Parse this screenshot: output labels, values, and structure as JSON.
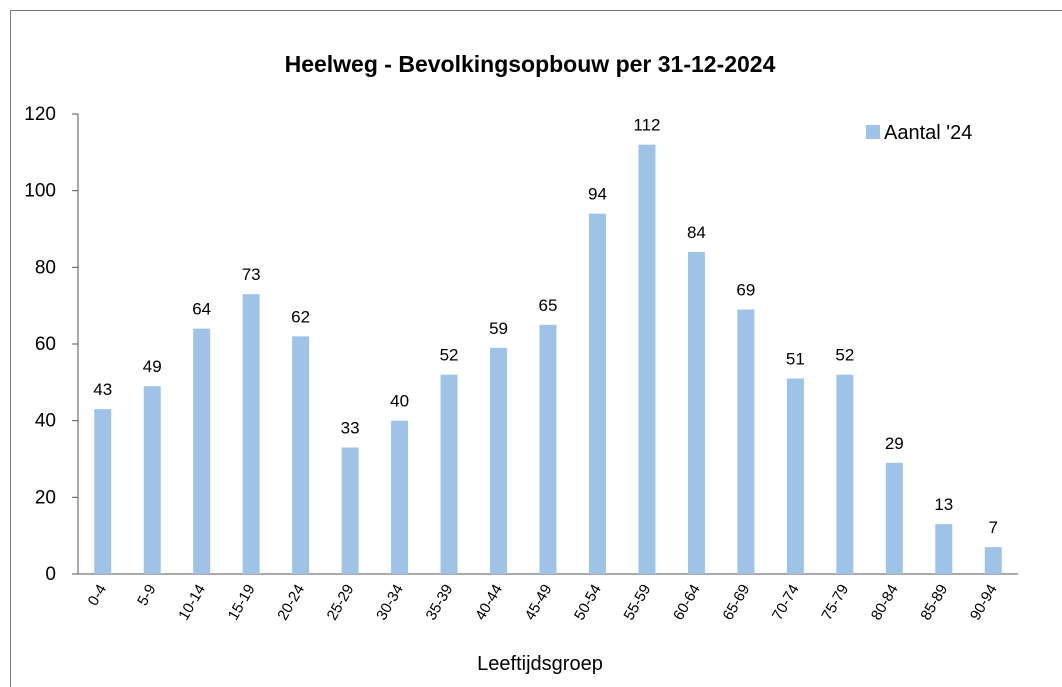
{
  "chart_data": {
    "type": "bar",
    "title": "Heelweg - Bevolkingsopbouw per 31-12-2024",
    "x_label": "Leeftijdsgroep",
    "categories": [
      "0-4",
      "5-9",
      "10-14",
      "15-19",
      "20-24",
      "25-29",
      "30-34",
      "35-39",
      "40-44",
      "45-49",
      "50-54",
      "55-59",
      "60-64",
      "65-69",
      "70-74",
      "75-79",
      "80-84",
      "85-89",
      "90-94"
    ],
    "series": [
      {
        "name": "Aantal '24",
        "color": "#9fc3e7",
        "values": [
          43,
          49,
          64,
          73,
          62,
          33,
          40,
          52,
          59,
          65,
          94,
          112,
          84,
          69,
          51,
          52,
          29,
          13,
          7
        ]
      }
    ],
    "ylim": [
      0,
      120
    ],
    "yticks": [
      0,
      20,
      40,
      60,
      80,
      100,
      120
    ],
    "grid": false,
    "legend": "top-right",
    "data_labels": true
  }
}
